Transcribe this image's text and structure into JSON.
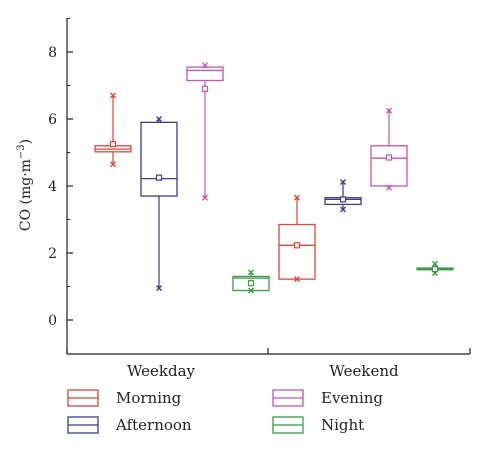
{
  "chart_data": {
    "type": "box",
    "ylabel": "CO (mg·m",
    "ylabel_sup": "−3",
    "ylabel_close": ")",
    "ylim": [
      -1,
      9
    ],
    "yticks": [
      "0",
      "2",
      "4",
      "6",
      "8"
    ],
    "categories": [
      "Weekday",
      "Weekend"
    ],
    "legend_placement": "bottom",
    "grid": false,
    "series": [
      {
        "name": "Morning",
        "color": "#e0443a",
        "boxes": [
          {
            "category": "Weekday",
            "min": 4.65,
            "q1": 5.02,
            "median": 5.1,
            "q3": 5.2,
            "max": 6.7,
            "mean": 5.25
          },
          {
            "category": "Weekend",
            "min": 1.22,
            "q1": 1.22,
            "median": 2.23,
            "q3": 2.85,
            "max": 3.65,
            "mean": 2.23
          }
        ]
      },
      {
        "name": "Afternoon",
        "color": "#3b3b8f",
        "boxes": [
          {
            "category": "Weekday",
            "min": 0.95,
            "q1": 3.7,
            "median": 4.22,
            "q3": 5.9,
            "max": 6.0,
            "mean": 4.25
          },
          {
            "category": "Weekend",
            "min": 3.3,
            "q1": 3.45,
            "median": 3.6,
            "q3": 3.65,
            "max": 4.12,
            "mean": 3.6
          }
        ]
      },
      {
        "name": "Evening",
        "color": "#c455b4",
        "boxes": [
          {
            "category": "Weekday",
            "min": 3.65,
            "q1": 7.15,
            "median": 7.45,
            "q3": 7.55,
            "max": 7.6,
            "mean": 6.9
          },
          {
            "category": "Weekend",
            "min": 3.95,
            "q1": 4.0,
            "median": 4.83,
            "q3": 5.2,
            "max": 6.25,
            "mean": 4.85
          }
        ]
      },
      {
        "name": "Night",
        "color": "#3a9a45",
        "boxes": [
          {
            "category": "Weekday",
            "min": 0.88,
            "q1": 0.88,
            "median": 1.25,
            "q3": 1.3,
            "max": 1.42,
            "mean": 1.1
          },
          {
            "category": "Weekend",
            "min": 1.4,
            "q1": 1.5,
            "median": 1.52,
            "q3": 1.55,
            "max": 1.68,
            "mean": 1.52
          }
        ]
      }
    ]
  }
}
